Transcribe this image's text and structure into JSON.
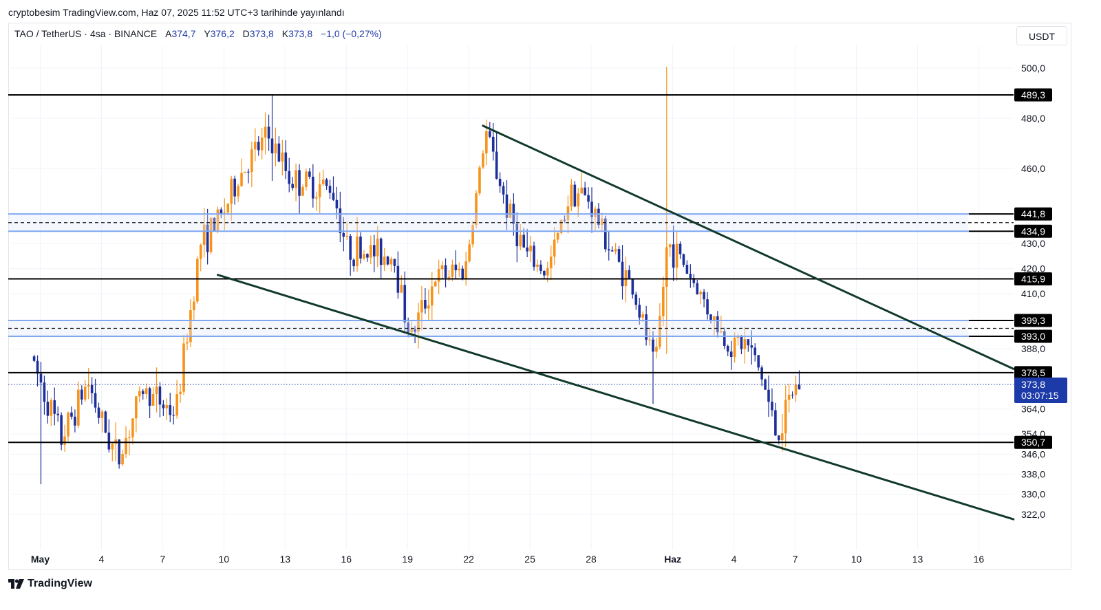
{
  "header": {
    "publish_line": "cryptobesim TradingView.com, Haz 07, 2025 11:52 UTC+3 tarihinde yayınlandı"
  },
  "legend": {
    "symbol": "TAO / TetherUS · 4sa · BINANCE",
    "open_label": "A",
    "open": "374,7",
    "high_label": "Y",
    "high": "376,2",
    "low_label": "D",
    "low": "373,8",
    "close_label": "K",
    "close": "373,8",
    "change": "−1,0 (−0,27%)"
  },
  "currency": "USDT",
  "brand": "TradingView",
  "colors": {
    "up": "#f7931a",
    "down": "#1c2f9c",
    "level_line": "#000000",
    "zone_line": "#7fa8f0",
    "channel": "#123a2a",
    "last_price": "#1c3aa8",
    "grid": "#f0f3fa"
  },
  "chart_data": {
    "type": "candlestick",
    "symbol": "TAO/USDT",
    "timeframe": "4h",
    "ylim": [
      316,
      505
    ],
    "y_tick_labels": [
      {
        "value": 500,
        "label": "500,0"
      },
      {
        "value": 480,
        "label": "480,0"
      },
      {
        "value": 460,
        "label": "460,0"
      },
      {
        "value": 430,
        "label": "430,0"
      },
      {
        "value": 420,
        "label": "420,0"
      },
      {
        "value": 410,
        "label": "410,0"
      },
      {
        "value": 388,
        "label": "388,0"
      },
      {
        "value": 364,
        "label": "364,0"
      },
      {
        "value": 354,
        "label": "354,0"
      },
      {
        "value": 346,
        "label": "346,0"
      },
      {
        "value": 338,
        "label": "338,0"
      },
      {
        "value": 330,
        "label": "330,0"
      },
      {
        "value": 322,
        "label": "322,0"
      }
    ],
    "x_ticks": [
      {
        "day": 1,
        "label": "May",
        "bold": true
      },
      {
        "day": 4,
        "label": "4"
      },
      {
        "day": 7,
        "label": "7"
      },
      {
        "day": 10,
        "label": "10"
      },
      {
        "day": 13,
        "label": "13"
      },
      {
        "day": 16,
        "label": "16"
      },
      {
        "day": 19,
        "label": "19"
      },
      {
        "day": 22,
        "label": "22"
      },
      {
        "day": 25,
        "label": "25"
      },
      {
        "day": 28,
        "label": "28"
      },
      {
        "day": 32,
        "label": "Haz",
        "bold": true
      },
      {
        "day": 35,
        "label": "4"
      },
      {
        "day": 38,
        "label": "7"
      },
      {
        "day": 41,
        "label": "10"
      },
      {
        "day": 44,
        "label": "13"
      },
      {
        "day": 47,
        "label": "16"
      }
    ],
    "horizontal_levels": [
      {
        "value": 489.3,
        "label": "489,3"
      },
      {
        "value": 415.9,
        "label": "415,9"
      },
      {
        "value": 378.5,
        "label": "378,5"
      },
      {
        "value": 350.7,
        "label": "350,7"
      }
    ],
    "zones": [
      {
        "top": 441.8,
        "bottom": 434.9,
        "top_label": "441,8",
        "bottom_label": "434,9"
      },
      {
        "top": 399.3,
        "bottom": 393.0,
        "top_label": "399,3",
        "bottom_label": "393,0"
      }
    ],
    "channel_lines": [
      {
        "name": "upper",
        "from": {
          "day": 22.7,
          "price": 477
        },
        "to": {
          "day": 48.7,
          "price": 380
        }
      },
      {
        "name": "lower",
        "from": {
          "day": 9.7,
          "price": 417.5
        },
        "to": {
          "day": 48.7,
          "price": 320
        }
      }
    ],
    "last_price": {
      "value": 373.8,
      "label": "373,8",
      "countdown": "03:07:15"
    },
    "key_points": [
      {
        "day": 0.7,
        "price": 385,
        "note": "start"
      },
      {
        "day": 2.2,
        "price": 352,
        "note": "low"
      },
      {
        "day": 3.5,
        "price": 375,
        "note": "bounce"
      },
      {
        "day": 4.2,
        "price": 358
      },
      {
        "day": 5.0,
        "price": 344,
        "note": "swing low"
      },
      {
        "day": 6.2,
        "price": 372
      },
      {
        "day": 7.8,
        "price": 362
      },
      {
        "day": 8.3,
        "price": 390
      },
      {
        "day": 9.0,
        "price": 430,
        "note": "breakout"
      },
      {
        "day": 10.0,
        "price": 440
      },
      {
        "day": 11.0,
        "price": 458
      },
      {
        "day": 12.3,
        "price": 473,
        "note": "local high"
      },
      {
        "day": 13.5,
        "price": 455
      },
      {
        "day": 15.5,
        "price": 452
      },
      {
        "day": 16.2,
        "price": 428
      },
      {
        "day": 18.5,
        "price": 425
      },
      {
        "day": 19.3,
        "price": 392,
        "note": "pullback low"
      },
      {
        "day": 20.5,
        "price": 416
      },
      {
        "day": 22.0,
        "price": 420
      },
      {
        "day": 23.0,
        "price": 475,
        "note": "local high"
      },
      {
        "day": 24.0,
        "price": 445
      },
      {
        "day": 25.0,
        "price": 425
      },
      {
        "day": 26.0,
        "price": 418
      },
      {
        "day": 27.2,
        "price": 452
      },
      {
        "day": 28.0,
        "price": 448
      },
      {
        "day": 29.0,
        "price": 430
      },
      {
        "day": 30.2,
        "price": 412
      },
      {
        "day": 31.3,
        "price": 380
      },
      {
        "day": 31.9,
        "price": 430,
        "note": "wick to 500"
      },
      {
        "day": 32.5,
        "price": 425
      },
      {
        "day": 33.5,
        "price": 410
      },
      {
        "day": 34.8,
        "price": 390
      },
      {
        "day": 35.8,
        "price": 390
      },
      {
        "day": 36.5,
        "price": 378
      },
      {
        "day": 37.3,
        "price": 352,
        "note": "channel low"
      },
      {
        "day": 38.1,
        "price": 372
      },
      {
        "day": 38.35,
        "price": 373.8,
        "note": "last"
      }
    ],
    "spike_wicks": [
      {
        "day": 31.7,
        "high": 500.5,
        "low": 386
      },
      {
        "day": 12.4,
        "high": 489.3,
        "low": 455
      },
      {
        "day": 1.1,
        "high": 372,
        "low": 334
      },
      {
        "day": 31.1,
        "high": 395,
        "low": 366
      },
      {
        "day": 37.3,
        "high": 362,
        "low": 347
      }
    ]
  }
}
